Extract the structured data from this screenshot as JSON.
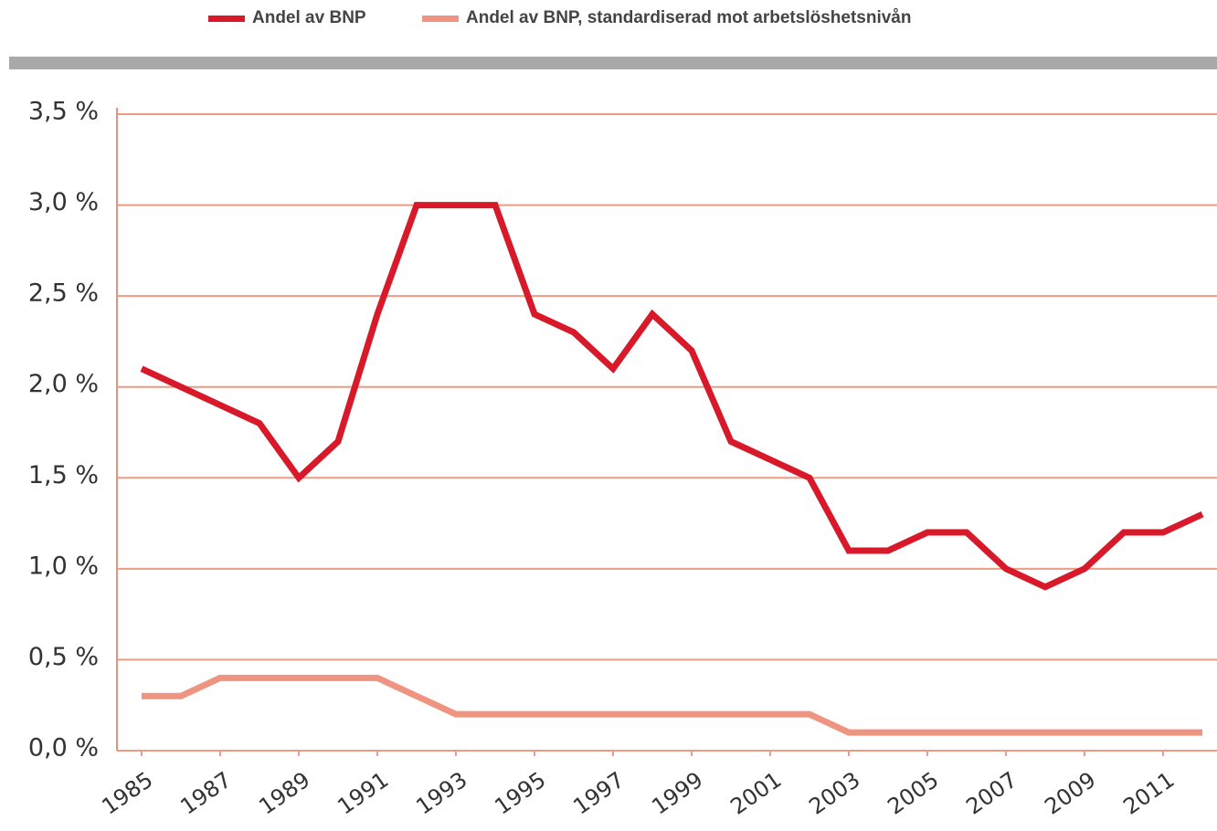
{
  "chart_data": {
    "type": "line",
    "x": [
      1985,
      1986,
      1987,
      1988,
      1989,
      1990,
      1991,
      1992,
      1993,
      1994,
      1995,
      1996,
      1997,
      1998,
      1999,
      2000,
      2001,
      2002,
      2003,
      2004,
      2005,
      2006,
      2007,
      2008,
      2009,
      2010,
      2011,
      2012
    ],
    "series": [
      {
        "name": "Andel av BNP",
        "color": "#d7192a",
        "values": [
          2.1,
          2.0,
          1.9,
          1.8,
          1.5,
          1.7,
          2.4,
          3.0,
          3.0,
          3.0,
          2.4,
          2.3,
          2.1,
          2.4,
          2.2,
          1.7,
          1.6,
          1.5,
          1.1,
          1.1,
          1.2,
          1.2,
          1.0,
          0.9,
          1.0,
          1.2,
          1.2,
          1.3
        ]
      },
      {
        "name": "Andel av BNP, standardiserad mot arbetslöshetsnivån",
        "color": "#ee9480",
        "values": [
          0.3,
          0.3,
          0.4,
          0.4,
          0.4,
          0.4,
          0.4,
          0.3,
          0.2,
          0.2,
          0.2,
          0.2,
          0.2,
          0.2,
          0.2,
          0.2,
          0.2,
          0.2,
          0.1,
          0.1,
          0.1,
          0.1,
          0.1,
          0.1,
          0.1,
          0.1,
          0.1,
          0.1
        ]
      }
    ],
    "xlim": [
      1985,
      2012
    ],
    "xticks": [
      1985,
      1987,
      1989,
      1991,
      1993,
      1995,
      1997,
      1999,
      2001,
      2003,
      2005,
      2007,
      2009,
      2011
    ],
    "ylim": [
      0,
      3.5
    ],
    "yticks": [
      {
        "value": 0,
        "label": "0,0 %"
      },
      {
        "value": 0.5,
        "label": "0,5 %"
      },
      {
        "value": 1,
        "label": "1,0 %"
      },
      {
        "value": 1.5,
        "label": "1,5 %"
      },
      {
        "value": 2,
        "label": "2,0 %"
      },
      {
        "value": 2.5,
        "label": "2,5 %"
      },
      {
        "value": 3,
        "label": "3,0 %"
      },
      {
        "value": 3.5,
        "label": "3,5 %"
      }
    ],
    "grid": true
  }
}
